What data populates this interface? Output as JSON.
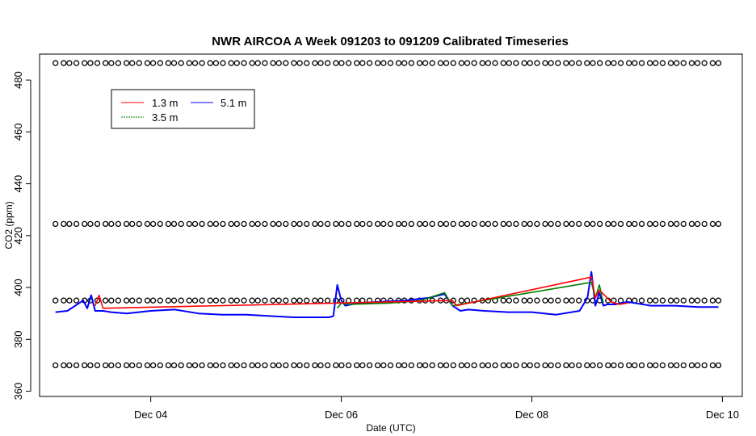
{
  "chart_data": {
    "type": "line",
    "title": "NWR AIRCOA A  Week 091203 to 091209  Calibrated Timeseries",
    "xlabel": "Date (UTC)",
    "ylabel": "CO2 (ppm)",
    "xlim": [
      "2009-12-02 20:00",
      "2009-12-10 05:00"
    ],
    "ylim": [
      358,
      490
    ],
    "x_ticks": [
      {
        "label": "Dec 04",
        "value": "2009-12-04"
      },
      {
        "label": "Dec 06",
        "value": "2009-12-06"
      },
      {
        "label": "Dec 08",
        "value": "2009-12-08"
      },
      {
        "label": "Dec 10",
        "value": "2009-12-10"
      }
    ],
    "y_ticks": [
      360,
      380,
      400,
      420,
      440,
      460,
      480
    ],
    "legend": {
      "placement": "top-left",
      "entries": [
        {
          "name": "1.3 m",
          "color": "#ff0000"
        },
        {
          "name": "3.5 m",
          "color": "#008000"
        },
        {
          "name": "5.1 m",
          "color": "#0000ff"
        }
      ]
    },
    "series": [
      {
        "name": "5.1 m",
        "color": "#0000ff",
        "x": [
          "2009-12-03 00:00",
          "2009-12-03 03:00",
          "2009-12-03 05:00",
          "2009-12-03 07:00",
          "2009-12-03 08:00",
          "2009-12-03 09:00",
          "2009-12-03 10:00",
          "2009-12-03 12:00",
          "2009-12-03 14:00",
          "2009-12-03 18:00",
          "2009-12-04 00:00",
          "2009-12-04 06:00",
          "2009-12-04 12:00",
          "2009-12-04 18:00",
          "2009-12-05 00:00",
          "2009-12-05 06:00",
          "2009-12-05 12:00",
          "2009-12-05 18:00",
          "2009-12-05 21:00",
          "2009-12-05 22:00",
          "2009-12-05 23:00",
          "2009-12-06 00:00",
          "2009-12-06 01:00",
          "2009-12-06 04:00",
          "2009-12-06 10:00",
          "2009-12-06 16:00",
          "2009-12-06 22:00",
          "2009-12-07 02:00",
          "2009-12-07 04:00",
          "2009-12-07 06:00",
          "2009-12-07 08:00",
          "2009-12-07 12:00",
          "2009-12-07 18:00",
          "2009-12-08 00:00",
          "2009-12-08 06:00",
          "2009-12-08 12:00",
          "2009-12-08 14:00",
          "2009-12-08 15:00",
          "2009-12-08 16:00",
          "2009-12-08 17:00",
          "2009-12-08 18:00",
          "2009-12-08 19:00",
          "2009-12-08 21:00",
          "2009-12-09 00:00",
          "2009-12-09 06:00",
          "2009-12-09 12:00",
          "2009-12-09 18:00",
          "2009-12-09 23:00"
        ],
        "y": [
          390.5,
          391,
          393,
          395,
          392,
          397,
          391,
          391,
          390.5,
          390,
          391,
          391.5,
          390,
          389.5,
          389.5,
          389,
          388.5,
          388.5,
          388.5,
          389,
          401,
          395,
          393,
          394,
          394.5,
          395,
          396,
          397.5,
          393,
          391,
          391.5,
          391,
          390.5,
          390.5,
          389.5,
          391,
          396,
          406,
          393,
          398,
          393,
          393.5,
          393.5,
          394.5,
          393,
          393,
          392.5,
          392.5
        ]
      },
      {
        "name": "3.5 m",
        "color": "#008000",
        "x": [
          "2009-12-05 23:00",
          "2009-12-06 00:00",
          "2009-12-06 02:00",
          "2009-12-06 12:00",
          "2009-12-06 20:00",
          "2009-12-07 02:00",
          "2009-12-07 04:00",
          "2009-12-08 15:00",
          "2009-12-08 16:00",
          "2009-12-08 17:00",
          "2009-12-08 18:00"
        ],
        "y": [
          392,
          394,
          393.5,
          394,
          395,
          398,
          393,
          402,
          396,
          401,
          394
        ]
      },
      {
        "name": "1.3 m",
        "color": "#ff0000",
        "x": [
          "2009-12-03 10:00",
          "2009-12-03 11:00",
          "2009-12-03 12:00",
          "2009-12-07 04:00",
          "2009-12-07 05:00",
          "2009-12-08 15:00",
          "2009-12-08 16:00",
          "2009-12-08 17:00",
          "2009-12-08 20:00",
          "2009-12-08 22:00",
          "2009-12-09 00:00"
        ],
        "y": [
          393,
          397,
          392,
          395,
          393,
          404,
          396,
          399,
          394.5,
          393.5,
          394
        ]
      }
    ],
    "reference_rows": [
      {
        "y": 486.5
      },
      {
        "y": 424.5
      },
      {
        "y": 395
      },
      {
        "y": 370
      }
    ]
  }
}
